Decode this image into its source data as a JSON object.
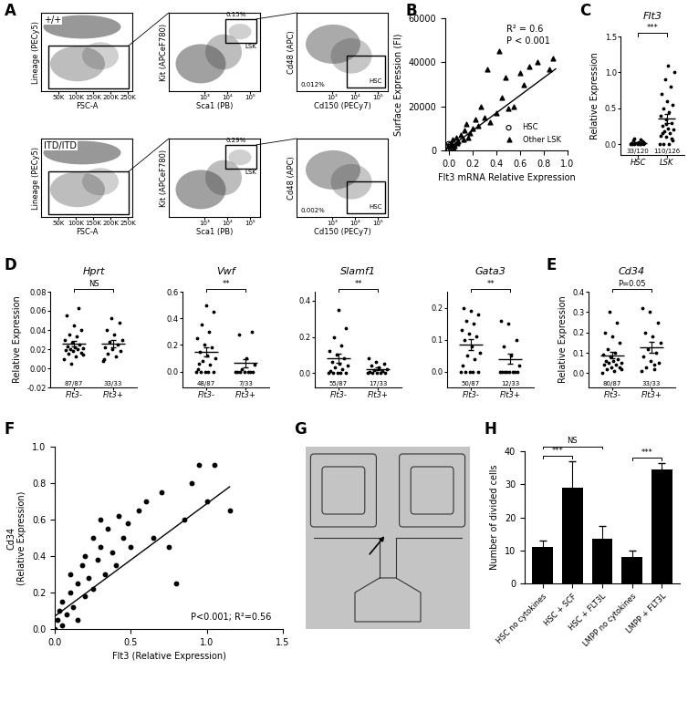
{
  "chart_data": [
    {
      "panel": "A",
      "type": "flow_cytometry",
      "rows": [
        {
          "genotype": "+/+",
          "plots": [
            {
              "xlabel": "FSC-A",
              "ylabel": "Lineage (PECy5)",
              "log": "y",
              "xlim": [
                0,
                262144
              ],
              "ylim": [
                30,
                262144
              ],
              "xticks": [
                {
                  "value": 50000,
                  "label": "50K"
                },
                {
                  "value": 100000,
                  "label": "100K"
                },
                {
                  "value": 150000,
                  "label": "150K"
                },
                {
                  "value": 200000,
                  "label": "200K"
                },
                {
                  "value": 250000,
                  "label": "250K"
                }
              ],
              "tick_labels": "x"
            },
            {
              "xlabel": "Sca1 (PB)",
              "ylabel": "Kit (APCeF780)",
              "log": true,
              "xlim": [
                30,
                262144
              ],
              "ylim": [
                30,
                262144
              ],
              "xticks": [
                {
                  "value": 1000,
                  "label": "10³"
                },
                {
                  "value": 10000,
                  "label": "10⁴"
                },
                {
                  "value": 100000,
                  "label": "10⁵"
                }
              ],
              "tick_labels": "x",
              "gate": "LSK",
              "gate_percent": {
                "value": 0.15,
                "label": "0.15%"
              }
            },
            {
              "xlabel": "Cd150 (PECy7)",
              "ylabel": "Cd48 (APC)",
              "log": true,
              "xlim": [
                30,
                262144
              ],
              "ylim": [
                30,
                262144
              ],
              "xticks": [
                {
                  "value": 1000,
                  "label": "10³"
                },
                {
                  "value": 10000,
                  "label": "10⁴"
                },
                {
                  "value": 100000,
                  "label": "10⁵"
                }
              ],
              "tick_labels": "x",
              "gate": "HSC",
              "gate_percent": {
                "value": 0.012,
                "label": "0.012%"
              }
            }
          ]
        },
        {
          "genotype": "ITD/ITD",
          "plots": [
            {
              "xlabel": "FSC-A",
              "ylabel": "Lineage (PECy5)",
              "log": "y",
              "xlim": [
                0,
                262144
              ],
              "ylim": [
                30,
                262144
              ],
              "xticks": [
                {
                  "value": 50000,
                  "label": "50K"
                },
                {
                  "value": 100000,
                  "label": "100K"
                },
                {
                  "value": 150000,
                  "label": "150K"
                },
                {
                  "value": 200000,
                  "label": "200K"
                },
                {
                  "value": 250000,
                  "label": "250K"
                }
              ],
              "tick_labels": "x"
            },
            {
              "xlabel": "Sca1 (PB)",
              "ylabel": "Kit (APCeF780)",
              "log": true,
              "xlim": [
                30,
                262144
              ],
              "ylim": [
                30,
                262144
              ],
              "xticks": [
                {
                  "value": 1000,
                  "label": "10³"
                },
                {
                  "value": 10000,
                  "label": "10⁴"
                },
                {
                  "value": 100000,
                  "label": "10⁵"
                }
              ],
              "tick_labels": "x",
              "gate": "LSK",
              "gate_percent": {
                "value": 0.29,
                "label": "0.29%"
              }
            },
            {
              "xlabel": "Cd150 (PECy7)",
              "ylabel": "Cd48 (APC)",
              "log": true,
              "xlim": [
                30,
                262144
              ],
              "ylim": [
                30,
                262144
              ],
              "xticks": [
                {
                  "value": 1000,
                  "label": "10³"
                },
                {
                  "value": 10000,
                  "label": "10⁴"
                },
                {
                  "value": 100000,
                  "label": "10⁵"
                }
              ],
              "tick_labels": "x",
              "gate": "HSC",
              "gate_percent": {
                "value": 0.002,
                "label": "0.002%"
              }
            }
          ]
        }
      ]
    },
    {
      "panel": "B",
      "type": "scatter",
      "xlabel": "Flt3 mRNA Relative Expression",
      "ylabel": "Surface Expression (FI)",
      "xlim": [
        -0.03,
        1.0
      ],
      "ylim": [
        0,
        60000
      ],
      "xticks": [
        0.0,
        0.2,
        0.4,
        0.6,
        0.8,
        1.0
      ],
      "yticks": [
        0,
        20000,
        40000,
        60000
      ],
      "legend": "lower right",
      "annotations": [
        "R² = 0.6",
        "P < 0.001"
      ],
      "series": [
        {
          "name": "HSC",
          "marker": "open circle",
          "color": "#000000",
          "x": [
            0.0,
            0.005,
            0.01,
            0.015,
            0.02,
            0.0,
            0.008
          ],
          "values": [
            500,
            1500,
            2500,
            1000,
            2000,
            3000,
            1800
          ]
        },
        {
          "name": "Other LSK",
          "marker": "triangle",
          "color": "#000000",
          "x": [
            0.02,
            0.03,
            0.05,
            0.06,
            0.08,
            0.1,
            0.12,
            0.13,
            0.15,
            0.16,
            0.18,
            0.2,
            0.22,
            0.25,
            0.27,
            0.3,
            0.32,
            0.35,
            0.4,
            0.42,
            0.45,
            0.48,
            0.5,
            0.55,
            0.6,
            0.63,
            0.68,
            0.75,
            0.88,
            0.85,
            0.04,
            0.07
          ],
          "values": [
            3000,
            5000,
            2000,
            6000,
            4000,
            7000,
            5000,
            9000,
            12000,
            6000,
            8000,
            10000,
            14000,
            11000,
            20000,
            15000,
            37000,
            13000,
            17000,
            45000,
            24000,
            33000,
            19000,
            20000,
            35000,
            30000,
            38000,
            40000,
            42000,
            37000,
            1000,
            3500
          ]
        }
      ],
      "trend_line": {
        "x": [
          0.0,
          0.9
        ],
        "values": [
          1000,
          37000
        ]
      }
    },
    {
      "panel": "C",
      "type": "dot",
      "plots": [
        {
          "title": "Flt3",
          "ylabel": "Relative Expression",
          "categories": [
            "HSC",
            "LSK"
          ],
          "groups": [
            [
              0,
              0,
              0,
              0,
              0,
              0,
              0,
              0.01,
              0.02,
              0.03,
              0.05,
              0.04,
              0.02,
              0.01,
              0.06,
              0.08,
              0.03
            ],
            [
              0,
              0,
              0,
              0.05,
              0.1,
              0.12,
              0.15,
              0.18,
              0.2,
              0.22,
              0.25,
              0.3,
              0.35,
              0.4,
              0.45,
              0.5,
              0.55,
              0.6,
              0.7,
              0.8,
              0.9,
              1.0,
              1.1,
              0.15,
              0.08,
              0.28
            ]
          ],
          "counts": [
            "33/120",
            "110/126"
          ],
          "ylim": [
            -0.15,
            1.5
          ],
          "yticks": [
            0.0,
            0.5,
            1.0,
            1.5
          ],
          "comparison": {
            "between": [
              "HSC",
              "LSK"
            ],
            "label": "***"
          }
        }
      ]
    },
    {
      "panel": "D",
      "type": "dot",
      "plots": [
        {
          "title": "Hprt",
          "ylabel": "Relative Expression",
          "categories": [
            "Flt3-",
            "Flt3+"
          ],
          "groups": [
            [
              0.01,
              0.012,
              0.015,
              0.016,
              0.018,
              0.019,
              0.02,
              0.02,
              0.021,
              0.022,
              0.023,
              0.025,
              0.027,
              0.03,
              0.033,
              0.035,
              0.04,
              0.045,
              0.055,
              0.063,
              0.005,
              0.014
            ],
            [
              0.008,
              0.012,
              0.015,
              0.018,
              0.02,
              0.022,
              0.025,
              0.028,
              0.03,
              0.035,
              0.04,
              0.048,
              0.052,
              0.01
            ]
          ],
          "counts": [
            "87/87",
            "33/33"
          ],
          "ylim": [
            -0.02,
            0.08
          ],
          "yticks": [
            -0.02,
            {
              "value": 0.0,
              "label": "0.00"
            },
            0.02,
            0.04,
            0.06,
            0.08
          ],
          "comparison": {
            "between": [
              "Flt3-",
              "Flt3+"
            ],
            "label": "NS"
          }
        },
        {
          "title": "Vwf",
          "categories": [
            "Flt3-",
            "Flt3+"
          ],
          "groups": [
            [
              0,
              0,
              0,
              0,
              0,
              0.02,
              0.05,
              0.08,
              0.1,
              0.12,
              0.15,
              0.18,
              0.2,
              0.25,
              0.3,
              0.35,
              0.45,
              0.5,
              0.06
            ],
            [
              0,
              0,
              0,
              0,
              0,
              0,
              0,
              0.02,
              0.05,
              0.1,
              0.28,
              0.3
            ]
          ],
          "counts": [
            "48/87",
            "7/33"
          ],
          "ylim": [
            -0.12,
            0.6
          ],
          "yticks": [
            0.0,
            0.2,
            0.4,
            0.6
          ],
          "comparison": {
            "between": [
              "Flt3-",
              "Flt3+"
            ],
            "label": "**"
          }
        },
        {
          "title": "Slamf1",
          "categories": [
            "Flt3-",
            "Flt3+"
          ],
          "groups": [
            [
              0,
              0,
              0,
              0,
              0,
              0.01,
              0.02,
              0.03,
              0.04,
              0.05,
              0.06,
              0.08,
              0.1,
              0.12,
              0.15,
              0.2,
              0.25,
              0.35
            ],
            [
              0,
              0,
              0,
              0,
              0,
              0.005,
              0.01,
              0.015,
              0.02,
              0.03,
              0.04,
              0.05,
              0.06,
              0.08
            ]
          ],
          "counts": [
            "55/87",
            "17/33"
          ],
          "ylim": [
            -0.08,
            0.45
          ],
          "yticks": [
            0.0,
            0.2,
            0.4
          ],
          "comparison": {
            "between": [
              "Flt3-",
              "Flt3+"
            ],
            "label": "**"
          }
        },
        {
          "title": "Gata3",
          "categories": [
            "Flt3-",
            "Flt3+"
          ],
          "groups": [
            [
              0,
              0,
              0,
              0,
              0,
              0.02,
              0.04,
              0.05,
              0.06,
              0.08,
              0.1,
              0.11,
              0.12,
              0.13,
              0.15,
              0.16,
              0.18,
              0.19,
              0.2
            ],
            [
              0,
              0,
              0,
              0,
              0,
              0,
              0,
              0,
              0.02,
              0.05,
              0.08,
              0.1,
              0.15,
              0.16
            ]
          ],
          "counts": [
            "50/87",
            "12/33"
          ],
          "ylim": [
            -0.05,
            0.25
          ],
          "yticks": [
            0.0,
            0.1,
            0.2
          ],
          "comparison": {
            "between": [
              "Flt3-",
              "Flt3+"
            ],
            "label": "**"
          }
        }
      ]
    },
    {
      "panel": "E",
      "type": "dot",
      "plots": [
        {
          "title": "Cd34",
          "ylabel": "Relative Expression",
          "categories": [
            "Flt3-",
            "Flt3+"
          ],
          "groups": [
            [
              0,
              0.01,
              0.02,
              0.03,
              0.03,
              0.04,
              0.04,
              0.05,
              0.05,
              0.06,
              0.06,
              0.07,
              0.08,
              0.09,
              0.1,
              0.12,
              0.15,
              0.18,
              0.2,
              0.25,
              0.3,
              0.02
            ],
            [
              0.01,
              0.02,
              0.03,
              0.05,
              0.06,
              0.08,
              0.1,
              0.12,
              0.15,
              0.18,
              0.2,
              0.25,
              0.3,
              0.32,
              0.04
            ]
          ],
          "counts": [
            "80/87",
            "33/33"
          ],
          "ylim": [
            -0.07,
            0.4
          ],
          "yticks": [
            0.0,
            0.1,
            0.2,
            0.3,
            0.4
          ],
          "comparison": {
            "between": [
              "Flt3-",
              "Flt3+"
            ],
            "label": "P=0.05"
          }
        }
      ]
    },
    {
      "panel": "F",
      "type": "scatter",
      "xlabel": "Flt3 (Relative Expression)",
      "ylabel": "Cd34\n(Relative Expression)",
      "xlim": [
        0.0,
        1.5
      ],
      "ylim": [
        0.0,
        1.0
      ],
      "xticks": [
        0.0,
        0.5,
        1.0,
        1.5
      ],
      "yticks": [
        0.0,
        0.2,
        0.4,
        0.6,
        0.8,
        1.0
      ],
      "annotations": [
        "P<0.001; R²=0.56"
      ],
      "series": [
        {
          "marker": "circle",
          "color": "#000000",
          "x": [
            0.0,
            0.02,
            0.03,
            0.05,
            0.05,
            0.08,
            0.1,
            0.1,
            0.12,
            0.15,
            0.15,
            0.18,
            0.2,
            0.2,
            0.22,
            0.25,
            0.25,
            0.28,
            0.3,
            0.3,
            0.33,
            0.35,
            0.38,
            0.4,
            0.42,
            0.45,
            0.48,
            0.5,
            0.55,
            0.6,
            0.65,
            0.7,
            0.8,
            0.85,
            0.9,
            0.95,
            1.0,
            1.05,
            1.15,
            0.75
          ],
          "values": [
            0.0,
            0.05,
            0.1,
            0.02,
            0.15,
            0.08,
            0.2,
            0.3,
            0.12,
            0.25,
            0.05,
            0.35,
            0.18,
            0.4,
            0.28,
            0.5,
            0.22,
            0.38,
            0.45,
            0.6,
            0.3,
            0.55,
            0.42,
            0.35,
            0.62,
            0.5,
            0.58,
            0.45,
            0.65,
            0.7,
            0.5,
            0.75,
            0.25,
            0.6,
            0.8,
            0.9,
            0.7,
            0.9,
            0.65,
            0.45
          ]
        }
      ],
      "trend_line": {
        "x": [
          0.0,
          1.15
        ],
        "values": [
          0.07,
          0.78
        ]
      }
    },
    {
      "panel": "G",
      "type": "image"
    },
    {
      "panel": "H",
      "type": "bar",
      "ylabel": "Number of divided cells",
      "color": "#000000",
      "categories": [
        "HSC no cytokines",
        "HSC + SCF",
        "HSC + FLT3L",
        "LMPP no cytokines",
        "LMPP + FLT3L"
      ],
      "values": [
        11,
        29,
        13.5,
        8,
        34.5
      ],
      "errors": [
        2,
        8,
        4,
        2,
        2
      ],
      "ylim": [
        0,
        40
      ],
      "yticks": [
        0,
        10,
        20,
        30,
        40
      ],
      "comparisons": [
        {
          "between": [
            "HSC no cytokines",
            "HSC + SCF"
          ],
          "label": "***"
        },
        {
          "between": [
            "HSC no cytokines",
            "HSC + FLT3L"
          ],
          "label": "NS"
        },
        {
          "between": [
            "LMPP no cytokines",
            "LMPP + FLT3L"
          ],
          "label": "***"
        }
      ]
    }
  ]
}
